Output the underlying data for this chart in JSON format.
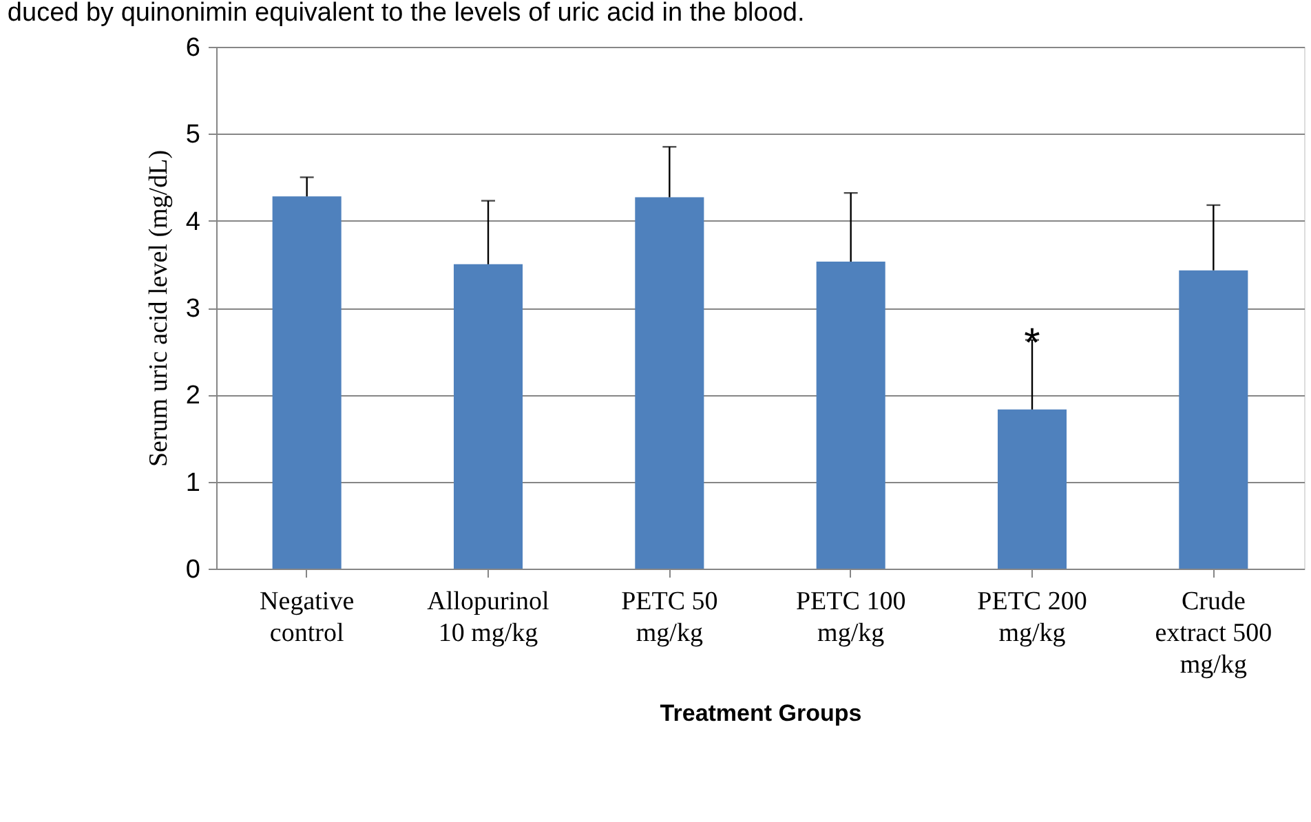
{
  "chart_data": {
    "type": "bar",
    "xlabel": "Treatment Groups",
    "ylabel": "Serum uric acid level (mg/dL)",
    "categories": [
      "Negative control",
      "Allopurinol 10 mg/kg",
      "PETC 50 mg/kg",
      "PETC 100 mg/kg",
      "PETC 200 mg/kg",
      "Crude extract 500 mg/kg"
    ],
    "values": [
      4.28,
      3.5,
      4.27,
      3.53,
      1.83,
      3.43
    ],
    "errors": [
      [
        4.28,
        4.5
      ],
      [
        3.5,
        4.23
      ],
      [
        4.27,
        4.85
      ],
      [
        3.53,
        4.32
      ],
      [
        1.83,
        2.63
      ],
      [
        3.43,
        4.18
      ]
    ],
    "color": "#4f81bd",
    "ylim": [
      0,
      6
    ],
    "yticks": [
      0,
      1,
      2,
      3,
      4,
      5,
      6
    ],
    "legend": false,
    "grid": "y",
    "annotations": [
      "duced by quinonimin equivalent to the levels of uric acid in the blood.",
      {
        "text": "*",
        "x": "PETC 200 mg/kg",
        "y": 2.63
      }
    ]
  }
}
